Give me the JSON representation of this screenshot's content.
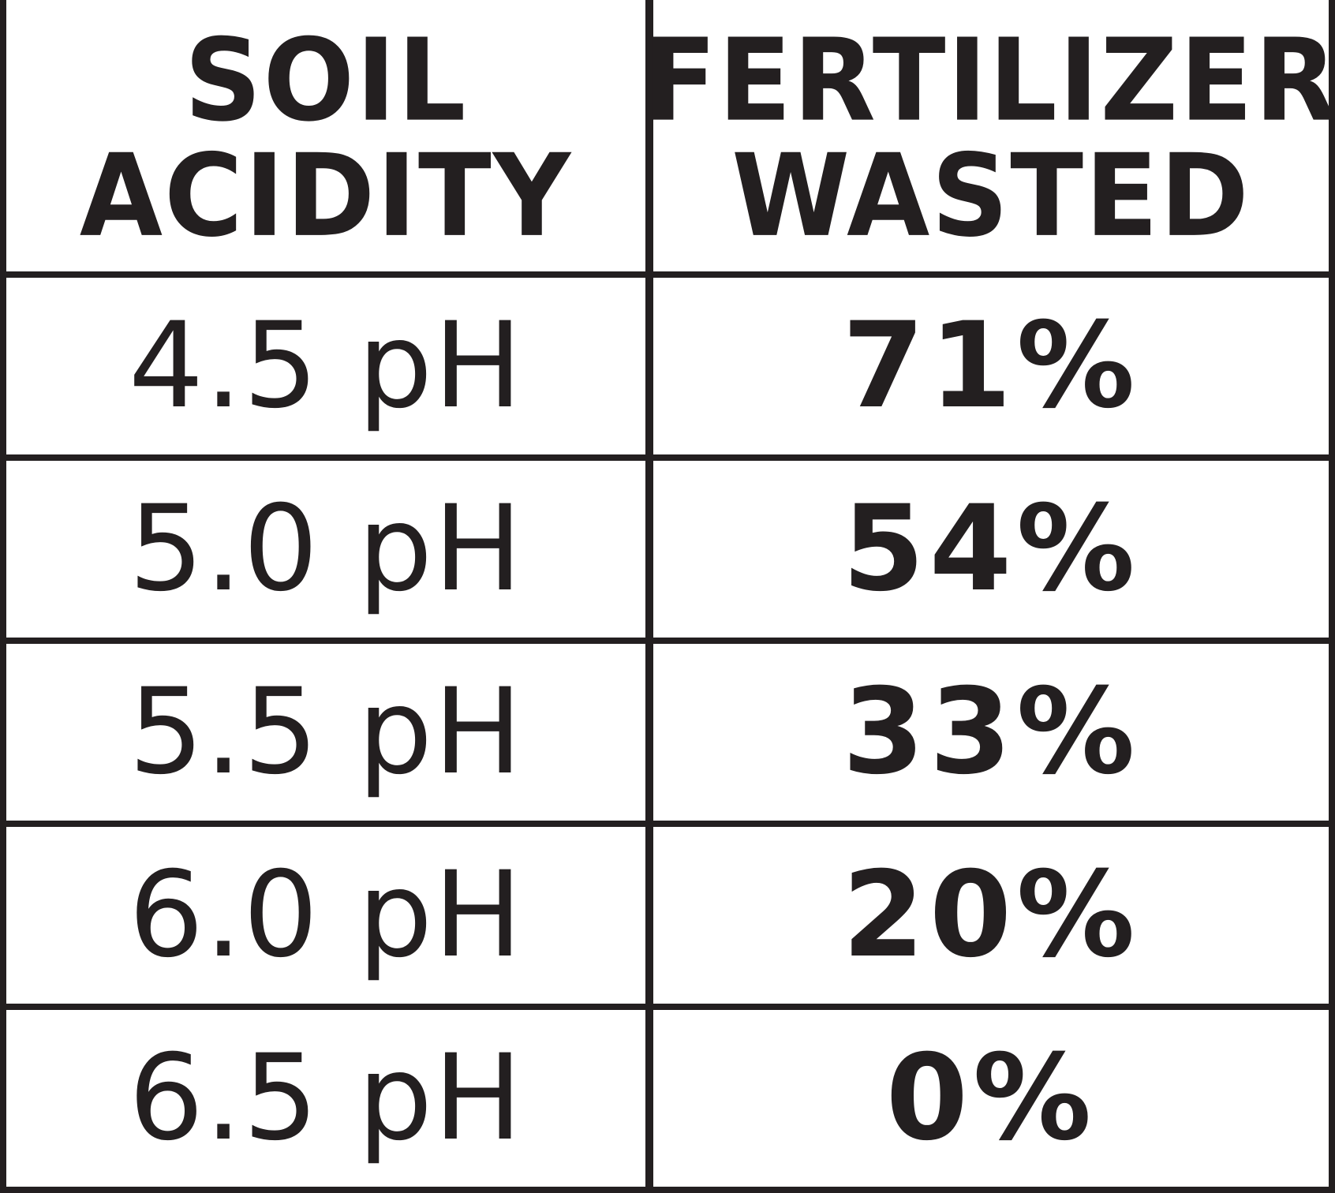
{
  "chart_data": {
    "type": "table",
    "columns": [
      [
        "SOIL",
        "ACIDITY"
      ],
      [
        "FERTILIZER",
        "WASTED"
      ]
    ],
    "rows": [
      {
        "acidity": "4.5 pH",
        "wasted": "71%"
      },
      {
        "acidity": "5.0 pH",
        "wasted": "54%"
      },
      {
        "acidity": "5.5 pH",
        "wasted": "33%"
      },
      {
        "acidity": "6.0 pH",
        "wasted": "20%"
      },
      {
        "acidity": "6.5 pH",
        "wasted": "0%"
      }
    ],
    "x": [
      4.5,
      5.0,
      5.5,
      6.0,
      6.5
    ],
    "y": [
      71,
      54,
      33,
      20,
      0
    ],
    "colors": {
      "ink": "#231f20",
      "background": "#ffffff"
    }
  }
}
